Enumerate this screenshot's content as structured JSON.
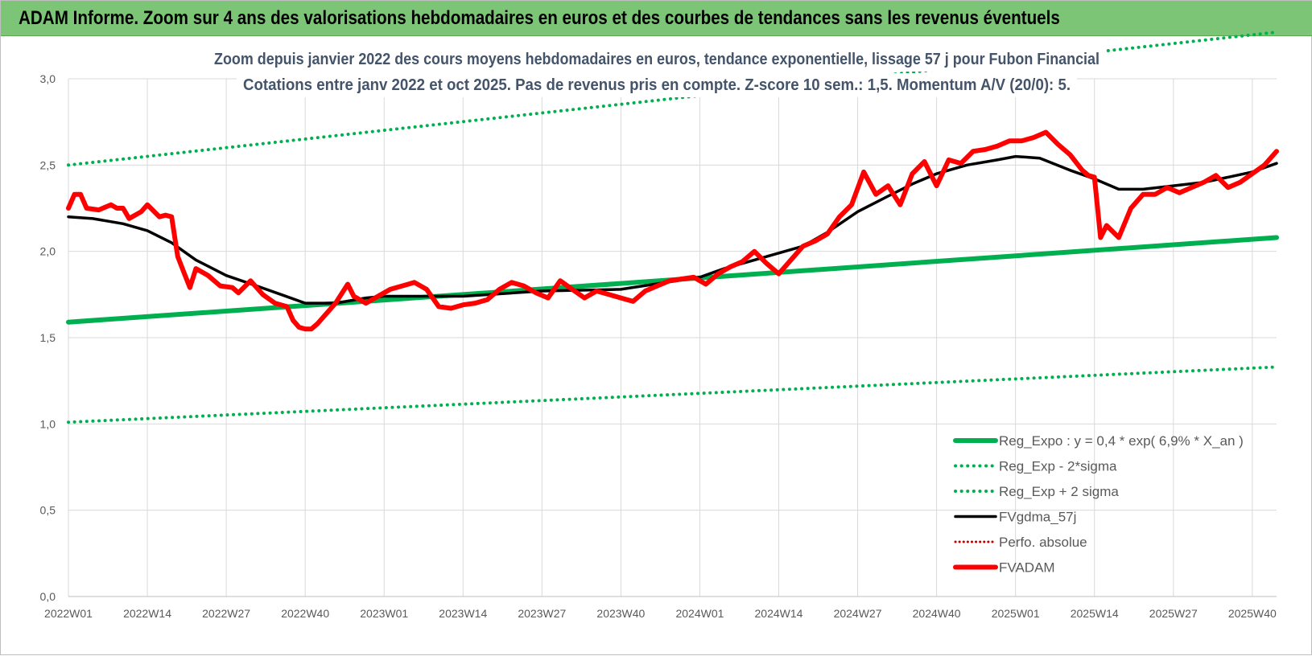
{
  "banner": {
    "title": "ADAM Informe. Zoom sur 4 ans des valorisations hebdomadaires en euros et des courbes de tendances sans les revenus éventuels"
  },
  "chart_data": {
    "type": "line",
    "title_lines": [
      "Zoom depuis janvier 2022 des cours moyens hebdomadaires en euros, tendance exponentielle, lissage 57 j pour Fubon Financial",
      "Cotations entre janv 2022 et oct 2025. Pas de revenus pris en compte. Z-score 10 sem.: 1,5. Momentum A/V (20/0): 5."
    ],
    "xlabel": "",
    "ylabel": "",
    "ylim": [
      0,
      3
    ],
    "yticks": [
      "0,0",
      "0,5",
      "1,0",
      "1,5",
      "2,0",
      "2,5",
      "3,0"
    ],
    "x_tick_labels": [
      "2022W01",
      "2022W14",
      "2022W27",
      "2022W40",
      "2023W01",
      "2023W14",
      "2023W27",
      "2023W40",
      "2024W01",
      "2024W14",
      "2024W27",
      "2024W40",
      "2025W01",
      "2025W14",
      "2025W27",
      "2025W40"
    ],
    "x_start": "2022W01",
    "x_end": "2025W44",
    "grid": true,
    "legend_position": "bottom-right",
    "colors": {
      "trend": "#00b050",
      "smooth": "#000000",
      "price": "#ff0000",
      "perfo": "#c00000"
    },
    "series": [
      {
        "name": "Reg_Expo : y = 0,4 * exp( 6,9% *  X_an )",
        "style": "solid",
        "x": [
          "2022W01",
          "2025W44"
        ],
        "y": [
          1.59,
          2.08
        ]
      },
      {
        "name": "Reg_Exp - 2*sigma",
        "style": "dotted",
        "x": [
          "2022W01",
          "2025W44"
        ],
        "y": [
          1.01,
          1.33
        ]
      },
      {
        "name": "Reg_Exp + 2 sigma",
        "style": "dotted",
        "x": [
          "2022W01",
          "2025W44"
        ],
        "y": [
          2.5,
          3.27
        ]
      },
      {
        "name": "FVgdma_57j",
        "style": "solid",
        "x": [
          "2022W01",
          "2022W05",
          "2022W10",
          "2022W14",
          "2022W18",
          "2022W22",
          "2022W27",
          "2022W32",
          "2022W36",
          "2022W40",
          "2022W45",
          "2022W50",
          "2023W01",
          "2023W14",
          "2023W27",
          "2023W40",
          "2024W01",
          "2024W05",
          "2024W10",
          "2024W14",
          "2024W18",
          "2024W22",
          "2024W27",
          "2024W32",
          "2024W36",
          "2024W40",
          "2024W45",
          "2024W50",
          "2025W01",
          "2025W05",
          "2025W10",
          "2025W14",
          "2025W18",
          "2025W22",
          "2025W27",
          "2025W32",
          "2025W36",
          "2025W40",
          "2025W44"
        ],
        "y": [
          2.2,
          2.19,
          2.16,
          2.12,
          2.05,
          1.95,
          1.86,
          1.8,
          1.75,
          1.7,
          1.7,
          1.73,
          1.74,
          1.74,
          1.77,
          1.78,
          1.85,
          1.9,
          1.95,
          1.99,
          2.03,
          2.11,
          2.23,
          2.32,
          2.39,
          2.45,
          2.5,
          2.53,
          2.55,
          2.54,
          2.47,
          2.42,
          2.36,
          2.36,
          2.38,
          2.4,
          2.43,
          2.46,
          2.51
        ]
      },
      {
        "name": "Perfo. absolue",
        "style": "dotted",
        "x": [],
        "y": []
      },
      {
        "name": "FVADAM",
        "style": "solid",
        "x": [
          "2022W01",
          "2022W02",
          "2022W03",
          "2022W04",
          "2022W06",
          "2022W08",
          "2022W09",
          "2022W10",
          "2022W11",
          "2022W13",
          "2022W14",
          "2022W16",
          "2022W17",
          "2022W18",
          "2022W19",
          "2022W20",
          "2022W21",
          "2022W22",
          "2022W24",
          "2022W26",
          "2022W28",
          "2022W29",
          "2022W31",
          "2022W33",
          "2022W35",
          "2022W37",
          "2022W38",
          "2022W39",
          "2022W40",
          "2022W41",
          "2022W42",
          "2022W45",
          "2022W47",
          "2022W48",
          "2022W50",
          "2022W52",
          "2023W02",
          "2023W04",
          "2023W06",
          "2023W08",
          "2023W10",
          "2023W12",
          "2023W14",
          "2023W16",
          "2023W18",
          "2023W20",
          "2023W22",
          "2023W24",
          "2023W26",
          "2023W28",
          "2023W30",
          "2023W32",
          "2023W34",
          "2023W36",
          "2023W38",
          "2023W40",
          "2023W42",
          "2023W44",
          "2023W46",
          "2023W48",
          "2023W50",
          "2023W52",
          "2024W02",
          "2024W04",
          "2024W06",
          "2024W08",
          "2024W10",
          "2024W12",
          "2024W14",
          "2024W16",
          "2024W18",
          "2024W20",
          "2024W22",
          "2024W24",
          "2024W26",
          "2024W28",
          "2024W30",
          "2024W32",
          "2024W34",
          "2024W36",
          "2024W38",
          "2024W40",
          "2024W42",
          "2024W44",
          "2024W46",
          "2024W48",
          "2024W50",
          "2024W52",
          "2025W02",
          "2025W04",
          "2025W06",
          "2025W08",
          "2025W10",
          "2025W12",
          "2025W13",
          "2025W14",
          "2025W15",
          "2025W16",
          "2025W18",
          "2025W20",
          "2025W22",
          "2025W24",
          "2025W26",
          "2025W28",
          "2025W30",
          "2025W32",
          "2025W34",
          "2025W36",
          "2025W38",
          "2025W40",
          "2025W42",
          "2025W44"
        ],
        "y": [
          2.25,
          2.33,
          2.33,
          2.25,
          2.24,
          2.27,
          2.25,
          2.25,
          2.19,
          2.23,
          2.27,
          2.2,
          2.21,
          2.2,
          1.97,
          1.88,
          1.79,
          1.9,
          1.86,
          1.8,
          1.79,
          1.76,
          1.83,
          1.75,
          1.7,
          1.68,
          1.6,
          1.56,
          1.55,
          1.55,
          1.58,
          1.7,
          1.81,
          1.74,
          1.7,
          1.74,
          1.78,
          1.8,
          1.82,
          1.78,
          1.68,
          1.67,
          1.69,
          1.7,
          1.72,
          1.78,
          1.82,
          1.8,
          1.76,
          1.73,
          1.83,
          1.78,
          1.73,
          1.77,
          1.75,
          1.73,
          1.71,
          1.77,
          1.8,
          1.83,
          1.84,
          1.85,
          1.81,
          1.87,
          1.91,
          1.94,
          2.0,
          1.93,
          1.87,
          1.95,
          2.03,
          2.06,
          2.1,
          2.2,
          2.27,
          2.46,
          2.33,
          2.38,
          2.27,
          2.45,
          2.52,
          2.38,
          2.53,
          2.51,
          2.58,
          2.59,
          2.61,
          2.64,
          2.64,
          2.66,
          2.69,
          2.62,
          2.56,
          2.47,
          2.44,
          2.43,
          2.08,
          2.15,
          2.08,
          2.25,
          2.33,
          2.33,
          2.37,
          2.34,
          2.37,
          2.4,
          2.44,
          2.37,
          2.4,
          2.45,
          2.5,
          2.58
        ]
      }
    ]
  }
}
